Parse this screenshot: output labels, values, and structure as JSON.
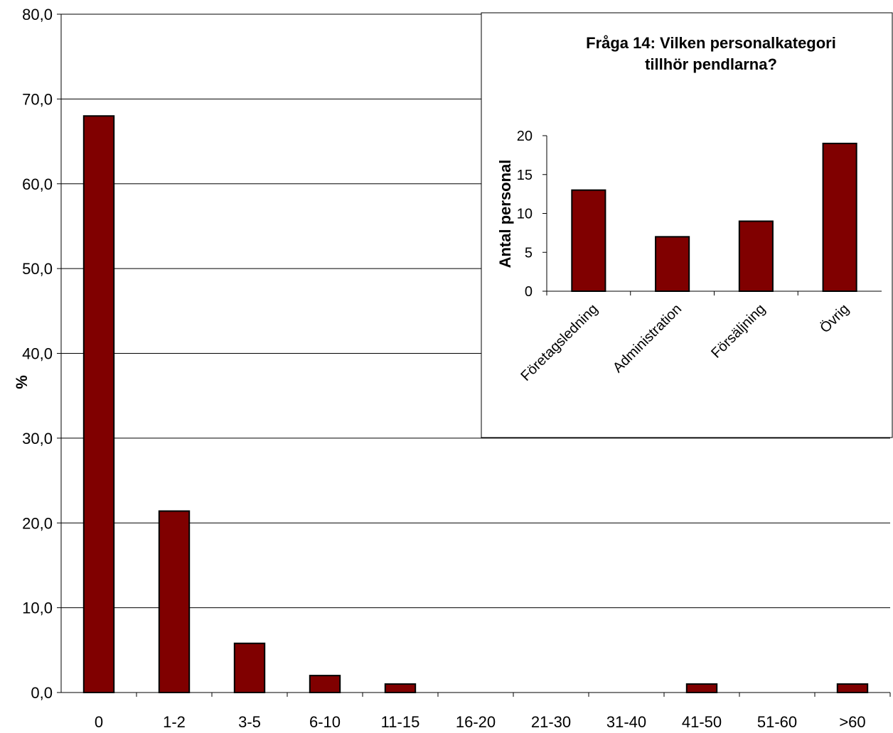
{
  "chart_data": [
    {
      "type": "bar",
      "title": "",
      "xlabel": "",
      "ylabel": "%",
      "categories": [
        "0",
        "1-2",
        "3-5",
        "6-10",
        "11-15",
        "16-20",
        "21-30",
        "31-40",
        "41-50",
        "51-60",
        ">60"
      ],
      "values": [
        68.0,
        21.4,
        5.8,
        2.0,
        1.0,
        0.0,
        0.0,
        0.0,
        1.0,
        0.0,
        1.0
      ],
      "ylim": [
        0,
        80
      ],
      "yticks": [
        "0,0",
        "10,0",
        "20,0",
        "30,0",
        "40,0",
        "50,0",
        "60,0",
        "70,0",
        "80,0"
      ],
      "grid": true,
      "bar_color": "#800000"
    },
    {
      "type": "bar",
      "title": "Fråga 14: Vilken personalkategori tillhör pendlarna?",
      "title_lines": [
        "Fråga 14: Vilken personalkategori",
        "tillhör pendlarna?"
      ],
      "xlabel": "",
      "ylabel": "Antal personal",
      "categories": [
        "Företagsledning",
        "Administration",
        "Försäljning",
        "Övrig"
      ],
      "values": [
        13,
        7,
        9,
        19
      ],
      "ylim": [
        0,
        20
      ],
      "yticks": [
        "0",
        "5",
        "10",
        "15",
        "20"
      ],
      "grid": false,
      "bar_color": "#800000"
    }
  ]
}
